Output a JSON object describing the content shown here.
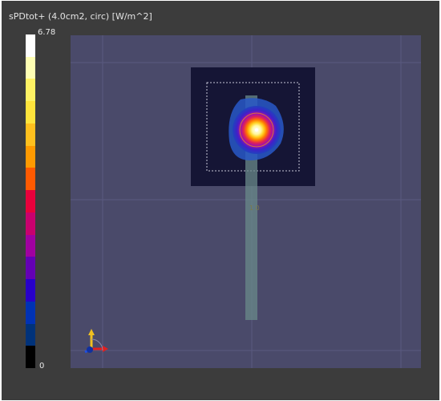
{
  "colorbar": {
    "title": "sPDtot+ (4.0cm2, circ) [W/m^2]",
    "max_label": "6.78",
    "min_label": "0",
    "colors": [
      "#ffffff",
      "#ffffb4",
      "#fff264",
      "#ffe43c",
      "#ffc01e",
      "#ff9a00",
      "#ff5a00",
      "#e8003c",
      "#c8006e",
      "#a000a0",
      "#6400b4",
      "#2800c8",
      "#0032b4",
      "#00327a",
      "#000000"
    ]
  },
  "scene": {
    "background": "#4a4a6a",
    "grid_color": "#5a5a80",
    "sensor_plane_color": "#151535",
    "probe_color": "#6a8a8a",
    "hotspot_peak_color": "#ffffff"
  },
  "cursor_marker": "1 0"
}
